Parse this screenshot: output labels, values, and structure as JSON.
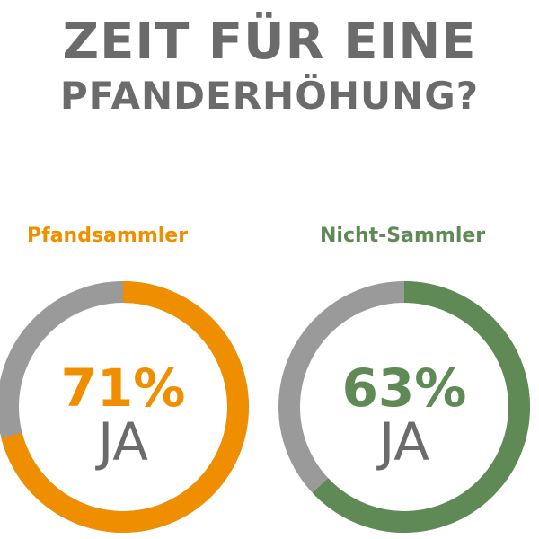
{
  "header": {
    "title_line1": "ZEIT FÜR EINE",
    "title_line2": "PFANDERHÖHUNG?"
  },
  "chart_data": {
    "type": "pie",
    "charts": [
      {
        "label": "Pfandsammler",
        "value": 71,
        "value_text": "71%",
        "answer": "JA",
        "color": "#ef8f00",
        "remainder_color": "#9a9a9a"
      },
      {
        "label": "Nicht-Sammler",
        "value": 63,
        "value_text": "63%",
        "answer": "JA",
        "color": "#5f8a55",
        "remainder_color": "#9a9a9a"
      }
    ]
  }
}
